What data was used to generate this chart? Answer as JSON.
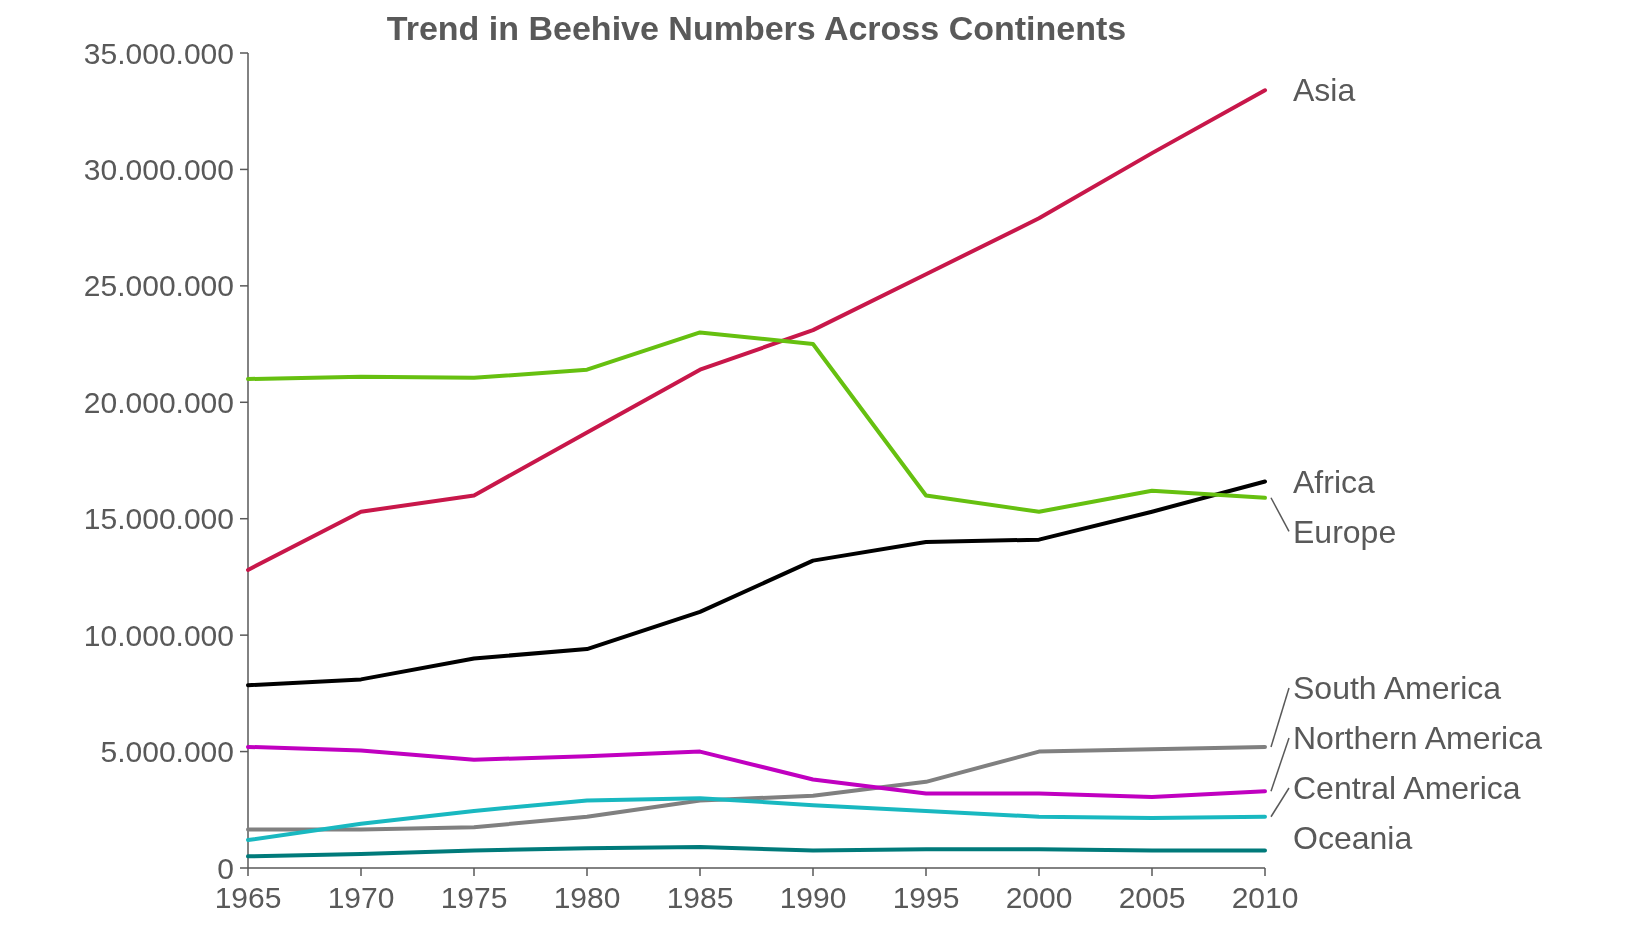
{
  "chart_data": {
    "type": "line",
    "title": "Trend in Beehive Numbers Across Continents",
    "x": [
      1965,
      1970,
      1975,
      1980,
      1985,
      1990,
      1995,
      2000,
      2005,
      2010
    ],
    "xlim": [
      1965,
      2010
    ],
    "xticks": [
      1965,
      1970,
      1975,
      1980,
      1985,
      1990,
      1995,
      2000,
      2005,
      2010
    ],
    "ylim": [
      0,
      35000000
    ],
    "yticks": [
      0,
      {
        "value": 5000000,
        "label": "5.000.000"
      },
      {
        "value": 10000000,
        "label": "10.000.000"
      },
      {
        "value": 15000000,
        "label": "15.000.000"
      },
      {
        "value": 20000000,
        "label": "20.000.000"
      },
      {
        "value": 25000000,
        "label": "25.000.000"
      },
      {
        "value": 30000000,
        "label": "30.000.000"
      },
      {
        "value": 35000000,
        "label": "35.000.000"
      }
    ],
    "grid": false,
    "marker": "none",
    "line_style": "solid",
    "series": [
      {
        "name": "Asia",
        "color": "#c8174a",
        "values": [
          12800000,
          15300000,
          16000000,
          18700000,
          21400000,
          23100000,
          25500000,
          27900000,
          30700000,
          33400000
        ]
      },
      {
        "name": "Africa",
        "color": "#000000",
        "values": [
          7850000,
          8100000,
          9000000,
          9400000,
          11000000,
          13200000,
          14000000,
          14100000,
          15300000,
          16600000
        ]
      },
      {
        "name": "Europe",
        "color": "#66c010",
        "values": [
          21000000,
          21100000,
          21050000,
          21400000,
          23000000,
          22500000,
          16000000,
          15300000,
          16200000,
          15900000
        ]
      },
      {
        "name": "South America",
        "color": "#808080",
        "values": [
          1650000,
          1650000,
          1750000,
          2200000,
          2900000,
          3100000,
          3700000,
          5000000,
          5100000,
          5200000
        ]
      },
      {
        "name": "Northern America",
        "color": "#c000c0",
        "values": [
          5200000,
          5050000,
          4650000,
          4800000,
          5000000,
          3800000,
          3200000,
          3200000,
          3050000,
          3300000
        ]
      },
      {
        "name": "Central America",
        "color": "#19b8c0",
        "values": [
          1200000,
          1900000,
          2450000,
          2900000,
          3000000,
          2700000,
          2450000,
          2200000,
          2150000,
          2200000
        ]
      },
      {
        "name": "Oceania",
        "color": "#007a7a",
        "values": [
          500000,
          600000,
          750000,
          850000,
          900000,
          750000,
          800000,
          800000,
          750000,
          750000
        ]
      }
    ]
  }
}
